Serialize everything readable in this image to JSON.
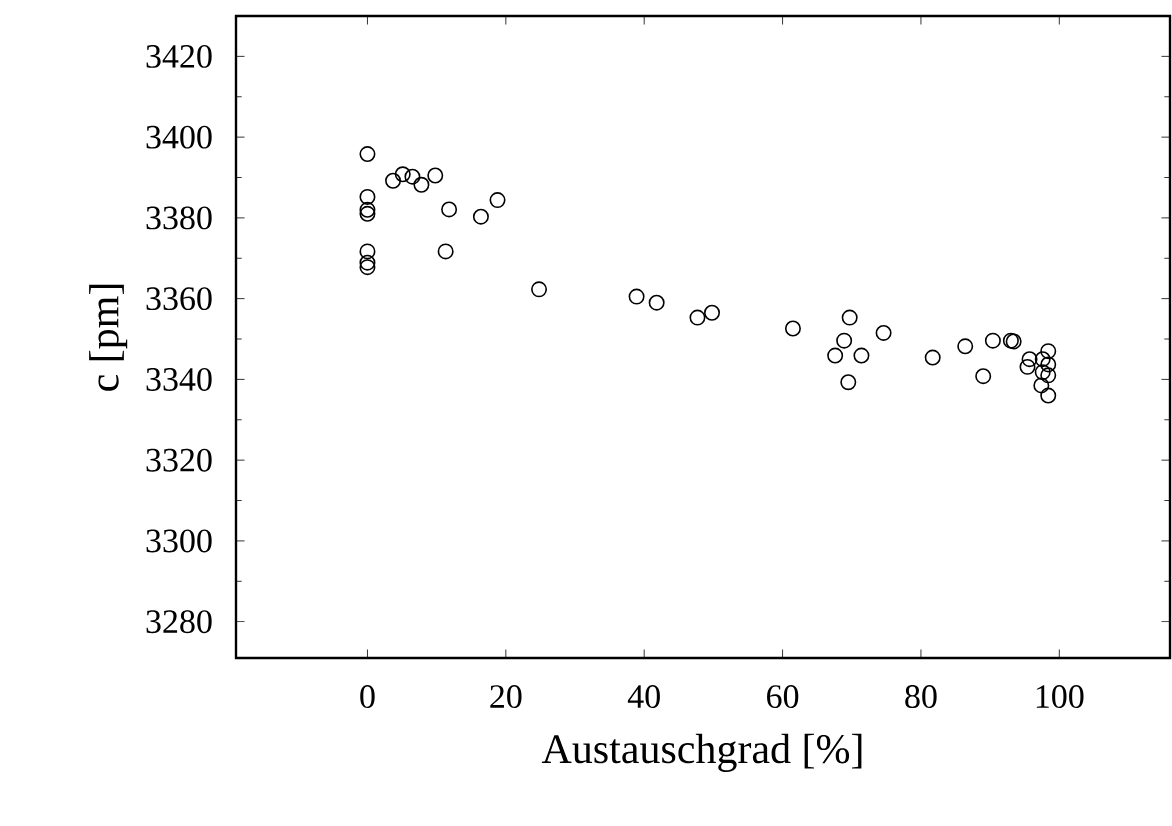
{
  "chart_data": {
    "type": "scatter",
    "xlabel": "Austauschgrad [%]",
    "ylabel": "c [pm]",
    "xlim": [
      -19,
      116
    ],
    "ylim": [
      3271,
      3430
    ],
    "xticks": [
      0,
      20,
      40,
      60,
      80,
      100
    ],
    "yticks": [
      3280,
      3300,
      3320,
      3340,
      3360,
      3380,
      3400,
      3420
    ],
    "marker": "circle",
    "grid": false,
    "series": [
      {
        "color": "#000000",
        "x": [
          0,
          0,
          0,
          0,
          0,
          0,
          0,
          3.7,
          5.1,
          6.5,
          7.8,
          9.8,
          11.8,
          11.3,
          16.4,
          18.8,
          24.8,
          38.9,
          41.8,
          47.7,
          49.8,
          61.5,
          69.7,
          68.9,
          67.6,
          71.4,
          69.5,
          74.6,
          81.7,
          86.4,
          89,
          90.4,
          93,
          93.4,
          95.7,
          95.4,
          97.6,
          98.4,
          98.4,
          98.4,
          97.4,
          98.4,
          97.6
        ],
        "values": [
          3395.8,
          3385.2,
          3382,
          3381,
          3371.7,
          3368.9,
          3367.8,
          3389.2,
          3390.8,
          3390.2,
          3388.2,
          3390.5,
          3382.1,
          3371.7,
          3380.3,
          3384.4,
          3362.3,
          3360.5,
          3359,
          3355.3,
          3356.5,
          3352.6,
          3355.3,
          3349.6,
          3345.9,
          3345.9,
          3339.3,
          3351.5,
          3345.4,
          3348.2,
          3340.8,
          3349.6,
          3349.6,
          3349.4,
          3345,
          3343.1,
          3345,
          3347,
          3343.7,
          3341,
          3338.5,
          3336,
          3341.8
        ]
      }
    ]
  }
}
